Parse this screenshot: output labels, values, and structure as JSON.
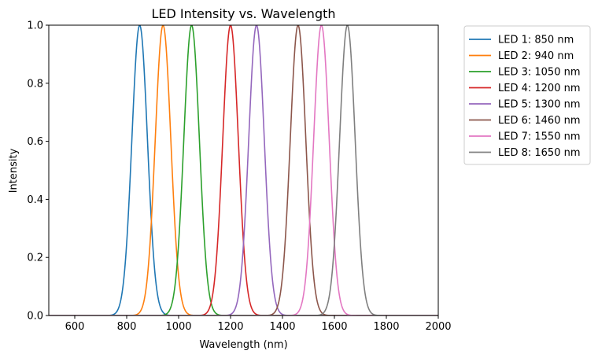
{
  "chart_data": {
    "type": "line",
    "title": "LED Intensity vs. Wavelength",
    "xlabel": "Wavelength (nm)",
    "ylabel": "Intensity",
    "xlim": [
      500,
      2000
    ],
    "ylim": [
      0,
      1
    ],
    "xticks": [
      600,
      800,
      1000,
      1200,
      1400,
      1600,
      1800,
      2000
    ],
    "yticks": [
      0.0,
      0.2,
      0.4,
      0.6,
      0.8,
      1.0
    ],
    "ytick_labels": [
      "0.0",
      "0.2",
      "0.4",
      "0.6",
      "0.8",
      "1.0"
    ],
    "grid": false,
    "legend_position": "outside-top-right",
    "curve_shape": "gaussian",
    "curve_sigma_nm": 30,
    "series": [
      {
        "name": "LED 1: 850 nm",
        "peak": 850,
        "color": "#1f77b4"
      },
      {
        "name": "LED 2: 940 nm",
        "peak": 940,
        "color": "#ff7f0e"
      },
      {
        "name": "LED 3: 1050 nm",
        "peak": 1050,
        "color": "#2ca02c"
      },
      {
        "name": "LED 4: 1200 nm",
        "peak": 1200,
        "color": "#d62728"
      },
      {
        "name": "LED 5: 1300 nm",
        "peak": 1300,
        "color": "#9467bd"
      },
      {
        "name": "LED 6: 1460 nm",
        "peak": 1460,
        "color": "#8c564b"
      },
      {
        "name": "LED 7: 1550 nm",
        "peak": 1550,
        "color": "#e377c2"
      },
      {
        "name": "LED 8: 1650 nm",
        "peak": 1650,
        "color": "#7f7f7f"
      }
    ]
  }
}
